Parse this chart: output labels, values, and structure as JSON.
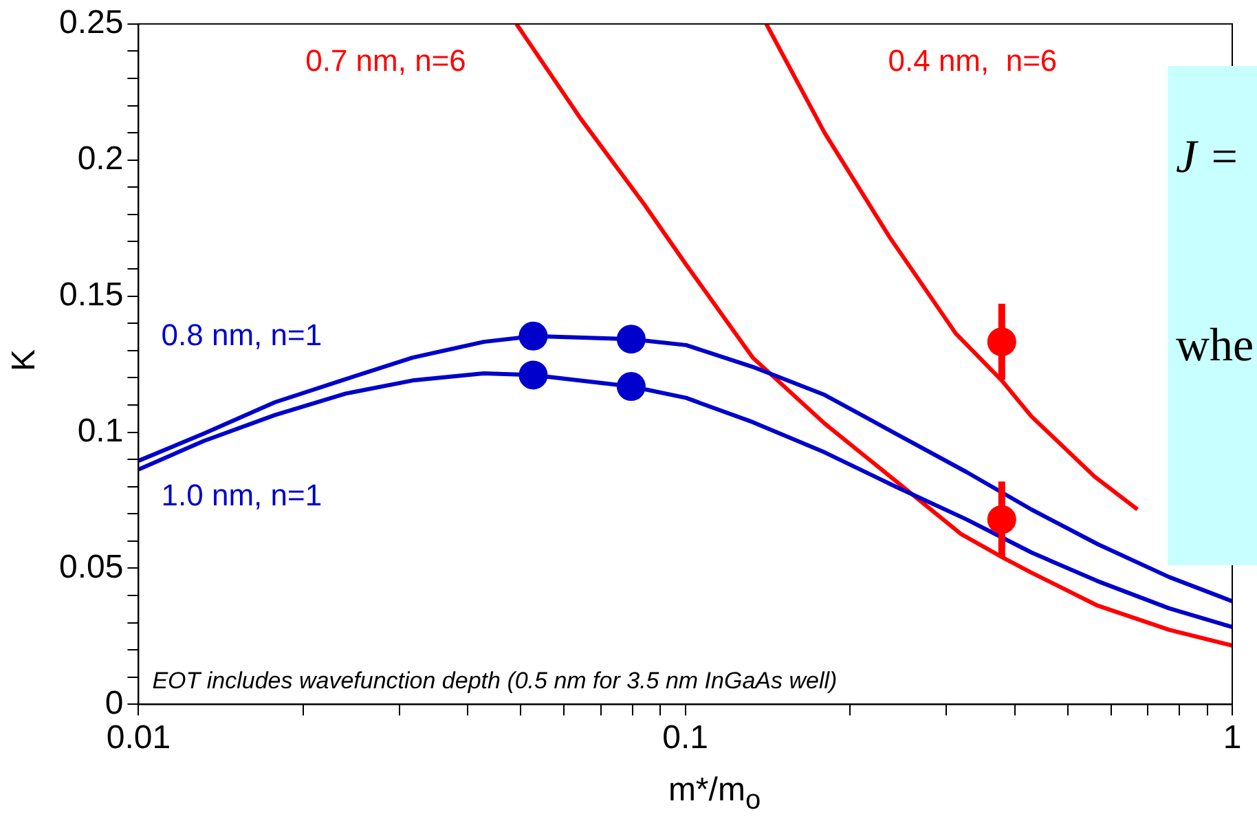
{
  "chart_data": {
    "type": "line",
    "xlabel": "m*/m$_{o}$",
    "ylabel": "K",
    "log": "x",
    "xlim": [
      0.01,
      1
    ],
    "ylim": [
      0,
      0.25
    ],
    "xticks": [
      0.01,
      {
        "value": 0.02,
        "label": null
      },
      {
        "value": 0.03,
        "label": null
      },
      {
        "value": 0.04,
        "label": null
      },
      {
        "value": 0.05,
        "label": null
      },
      {
        "value": 0.06,
        "label": null
      },
      {
        "value": 0.07,
        "label": null
      },
      {
        "value": 0.08,
        "label": null
      },
      {
        "value": 0.09,
        "label": null
      },
      0.1,
      {
        "value": 0.2,
        "label": null
      },
      {
        "value": 0.3,
        "label": null
      },
      {
        "value": 0.4,
        "label": null
      },
      {
        "value": 0.5,
        "label": null
      },
      {
        "value": 0.6,
        "label": null
      },
      {
        "value": 0.7,
        "label": null
      },
      {
        "value": 0.8,
        "label": null
      },
      {
        "value": 0.9,
        "label": null
      },
      1
    ],
    "yticks": [
      0,
      {
        "value": 0.01,
        "label": null
      },
      {
        "value": 0.02,
        "label": null
      },
      {
        "value": 0.03,
        "label": null
      },
      {
        "value": 0.04,
        "label": null
      },
      0.05,
      {
        "value": 0.06,
        "label": null
      },
      {
        "value": 0.07,
        "label": null
      },
      {
        "value": 0.08,
        "label": null
      },
      {
        "value": 0.09,
        "label": null
      },
      0.1,
      {
        "value": 0.11,
        "label": null
      },
      {
        "value": 0.12,
        "label": null
      },
      {
        "value": 0.13,
        "label": null
      },
      {
        "value": 0.14,
        "label": null
      },
      0.15,
      {
        "value": 0.16,
        "label": null
      },
      {
        "value": 0.17,
        "label": null
      },
      {
        "value": 0.18,
        "label": null
      },
      {
        "value": 0.19,
        "label": null
      },
      0.2,
      {
        "value": 0.21,
        "label": null
      },
      {
        "value": 0.22,
        "label": null
      },
      {
        "value": 0.23,
        "label": null
      },
      {
        "value": 0.24,
        "label": null
      },
      0.25
    ],
    "grid": false,
    "legend": false,
    "marker": "none",
    "line_style": "solid",
    "series": [
      {
        "name": "0.8 nm, n=1",
        "color": "#0000cc",
        "x": [
          0.01,
          0.01317,
          0.01776,
          0.02393,
          0.0317,
          0.0428,
          0.0527,
          0.0796,
          0.1003,
          0.1328,
          0.1797,
          0.2424,
          0.3271,
          0.4294,
          0.5671,
          0.7662,
          1
        ],
        "values": [
          0.0895,
          0.0995,
          0.111,
          0.1195,
          0.1274,
          0.1332,
          0.1353,
          0.1342,
          0.132,
          0.124,
          0.1137,
          0.0995,
          0.0853,
          0.0716,
          0.0589,
          0.0468,
          0.0379
        ]
      },
      {
        "name": "1.0 nm, n=1",
        "color": "#0000cc",
        "x": [
          0.01,
          0.01317,
          0.01776,
          0.02393,
          0.0317,
          0.0428,
          0.0527,
          0.0796,
          0.1003,
          0.1328,
          0.1797,
          0.2424,
          0.3271,
          0.4294,
          0.5671,
          0.7662,
          1
        ],
        "values": [
          0.0863,
          0.0968,
          0.1063,
          0.1142,
          0.119,
          0.1216,
          0.121,
          0.1168,
          0.1126,
          0.1037,
          0.0926,
          0.08,
          0.0679,
          0.0558,
          0.0453,
          0.0353,
          0.0284
        ]
      },
      {
        "name": "0.7 nm, n=6",
        "color": "#ff0000",
        "x": [
          0.0491,
          0.0643,
          0.0841,
          0.1003,
          0.1328,
          0.1797,
          0.2424,
          0.3192,
          0.3826,
          0.4294,
          0.5671,
          0.7662,
          1
        ],
        "values": [
          0.25,
          0.2153,
          0.1837,
          0.1616,
          0.1274,
          0.1032,
          0.0821,
          0.0626,
          0.0537,
          0.0484,
          0.0363,
          0.0274,
          0.0216
        ]
      },
      {
        "name": "0.4 nm,  n=6",
        "color": "#ff0000",
        "x": [
          0.1406,
          0.1797,
          0.2364,
          0.3121,
          0.3789,
          0.4294,
          0.5601,
          0.6709
        ],
        "values": [
          0.25,
          0.21,
          0.1716,
          0.1363,
          0.119,
          0.1058,
          0.0837,
          0.0716
        ]
      },
      {
        "type": "scatter",
        "marker": "circle",
        "color": "#0000cc",
        "x": [
          0.0527,
          0.0796,
          0.0527,
          0.0796
        ],
        "values": [
          0.1353,
          0.1342,
          0.121,
          0.1168
        ]
      },
      {
        "type": "scatter",
        "marker": "circle",
        "color": "#ff0000",
        "x": [
          0.3789,
          0.3789
        ],
        "values": [
          0.1332,
          0.0679
        ],
        "errors": [
          0.014,
          0.014
        ]
      }
    ],
    "annotations": [
      "EOT includes wavefunction depth (0.5 nm for 3.5 nm InGaAs well)",
      "J =",
      "whe"
    ]
  }
}
